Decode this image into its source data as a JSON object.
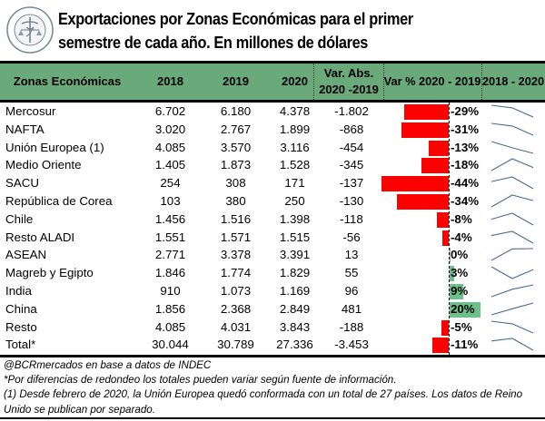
{
  "header": {
    "logo": "bolsa-de-comercio-de-rosario-seal",
    "logo_text": "BOLSA DE COMERCIO DE ROSARIO",
    "title_line1": "Exportaciones por Zonas Económicas para el primer",
    "title_line2": "semestre de cada año. En millones de dólares"
  },
  "colors": {
    "header_bg": "#6aaa7a",
    "negative_bar": "#ff0000",
    "positive_bar": "#6cc18a",
    "sparkline": "#4a6a9a"
  },
  "chart_data": {
    "type": "table",
    "title": "Exportaciones por Zonas Económicas para el primer semestre de cada año. En millones de dólares",
    "columns": [
      "Zonas Económicas",
      "2018",
      "2019",
      "2020",
      "Var. Abs. 2020 -2019",
      "Var % 2020 - 2019",
      "2018 - 2020"
    ],
    "column_headers": {
      "zone": "Zonas Económicas",
      "y2018": "2018",
      "y2019": "2019",
      "y2020": "2020",
      "var_abs_line1": "Var. Abs.",
      "var_abs_line2": "2020 -2019",
      "var_pct": "Var % 2020 - 2019",
      "trend": "2018 - 2020"
    },
    "rows": [
      {
        "zone": "Mercosur",
        "y2018": "6.702",
        "y2019": "6.180",
        "y2020": "4.378",
        "var_abs": "-1.802",
        "var_pct_label": "-29%",
        "var_pct": -29,
        "trend": [
          6702,
          6180,
          4378
        ]
      },
      {
        "zone": "NAFTA",
        "y2018": "3.020",
        "y2019": "2.767",
        "y2020": "1.899",
        "var_abs": "-868",
        "var_pct_label": "-31%",
        "var_pct": -31,
        "trend": [
          3020,
          2767,
          1899
        ]
      },
      {
        "zone": "Unión Europea (1)",
        "y2018": "4.085",
        "y2019": "3.570",
        "y2020": "3.116",
        "var_abs": "-454",
        "var_pct_label": "-13%",
        "var_pct": -13,
        "trend": [
          4085,
          3570,
          3116
        ]
      },
      {
        "zone": "Medio Oriente",
        "y2018": "1.405",
        "y2019": "1.873",
        "y2020": "1.528",
        "var_abs": "-345",
        "var_pct_label": "-18%",
        "var_pct": -18,
        "trend": [
          1405,
          1873,
          1528
        ]
      },
      {
        "zone": " SACU",
        "y2018": "254",
        "y2019": "308",
        "y2020": "171",
        "var_abs": "-137",
        "var_pct_label": "-44%",
        "var_pct": -44,
        "trend": [
          254,
          308,
          171
        ]
      },
      {
        "zone": "República de Corea",
        "y2018": "103",
        "y2019": "380",
        "y2020": "250",
        "var_abs": "-130",
        "var_pct_label": "-34%",
        "var_pct": -34,
        "trend": [
          103,
          380,
          250
        ]
      },
      {
        "zone": "Chile",
        "y2018": "1.456",
        "y2019": "1.516",
        "y2020": "1.398",
        "var_abs": "-118",
        "var_pct_label": "-8%",
        "var_pct": -8,
        "trend": [
          1456,
          1516,
          1398
        ]
      },
      {
        "zone": "Resto ALADI",
        "y2018": "1.551",
        "y2019": "1.571",
        "y2020": "1.515",
        "var_abs": "-56",
        "var_pct_label": "-4%",
        "var_pct": -4,
        "trend": [
          1551,
          1571,
          1515
        ]
      },
      {
        "zone": "ASEAN",
        "y2018": "2.771",
        "y2019": "3.378",
        "y2020": "3.391",
        "var_abs": "13",
        "var_pct_label": "0%",
        "var_pct": 0.4,
        "trend": [
          2771,
          3378,
          3391
        ]
      },
      {
        "zone": "Magreb y Egipto",
        "y2018": "1.846",
        "y2019": "1.774",
        "y2020": "1.829",
        "var_abs": "55",
        "var_pct_label": "3%",
        "var_pct": 3,
        "trend": [
          1846,
          1774,
          1829
        ]
      },
      {
        "zone": "India",
        "y2018": "910",
        "y2019": "1.073",
        "y2020": "1.169",
        "var_abs": "96",
        "var_pct_label": "9%",
        "var_pct": 9,
        "trend": [
          910,
          1073,
          1169
        ]
      },
      {
        "zone": "China",
        "y2018": "1.856",
        "y2019": "2.368",
        "y2020": "2.849",
        "var_abs": "481",
        "var_pct_label": "20%",
        "var_pct": 20,
        "trend": [
          1856,
          2368,
          2849
        ]
      },
      {
        "zone": "Resto",
        "y2018": "4.085",
        "y2019": "4.031",
        "y2020": "3.843",
        "var_abs": "-188",
        "var_pct_label": "-5%",
        "var_pct": -5,
        "trend": [
          4085,
          4031,
          3843
        ]
      },
      {
        "zone": "Total*",
        "y2018": "30.044",
        "y2019": "30.789",
        "y2020": "27.336",
        "var_abs": "-3.453",
        "var_pct_label": "-11%",
        "var_pct": -11,
        "trend": [
          30044,
          30789,
          27336
        ]
      }
    ]
  },
  "notes": {
    "source": "@BCRmercados en base a datos de INDEC",
    "rounding": "*Por diferencias de redondeo los totales pueden variar según fuente de información.",
    "eu_note": "(1) Desde febrero de 2020, la Unión Europea quedó conformada con un total de 27 países. Los datos de Reino Unido se publican por separado."
  }
}
